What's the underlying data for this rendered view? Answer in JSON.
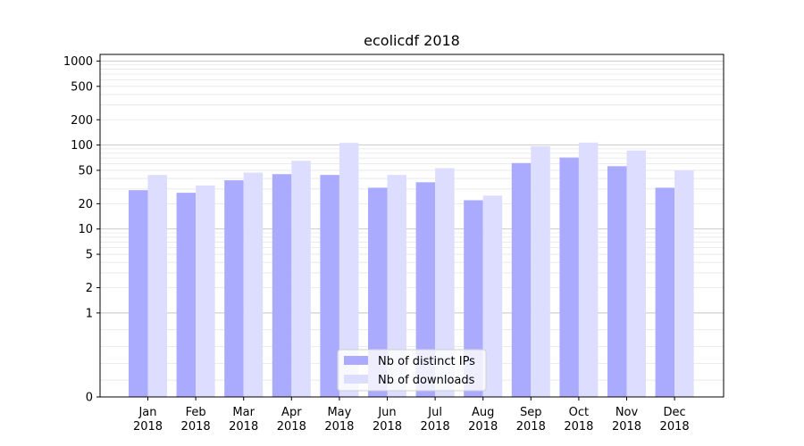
{
  "chart_data": {
    "type": "bar",
    "title": "ecolicdf 2018",
    "xlabel": "",
    "ylabel": "",
    "yscale": "symlog",
    "ylim": [
      0,
      1200
    ],
    "yticks": [
      0,
      1,
      2,
      5,
      10,
      20,
      50,
      100,
      200,
      500,
      1000
    ],
    "grid": true,
    "legend_position": "lower-center",
    "categories": [
      [
        "Jan",
        "2018"
      ],
      [
        "Feb",
        "2018"
      ],
      [
        "Mar",
        "2018"
      ],
      [
        "Apr",
        "2018"
      ],
      [
        "May",
        "2018"
      ],
      [
        "Jun",
        "2018"
      ],
      [
        "Jul",
        "2018"
      ],
      [
        "Aug",
        "2018"
      ],
      [
        "Sep",
        "2018"
      ],
      [
        "Oct",
        "2018"
      ],
      [
        "Nov",
        "2018"
      ],
      [
        "Dec",
        "2018"
      ]
    ],
    "series": [
      {
        "name": "Nb of distinct IPs",
        "color": "#aaaaff",
        "values": [
          29,
          27,
          38,
          45,
          44,
          31,
          36,
          22,
          61,
          71,
          56,
          31
        ]
      },
      {
        "name": "Nb of downloads",
        "color": "#ddddff",
        "values": [
          44,
          33,
          47,
          65,
          106,
          44,
          53,
          25,
          97,
          107,
          86,
          50
        ]
      }
    ]
  }
}
